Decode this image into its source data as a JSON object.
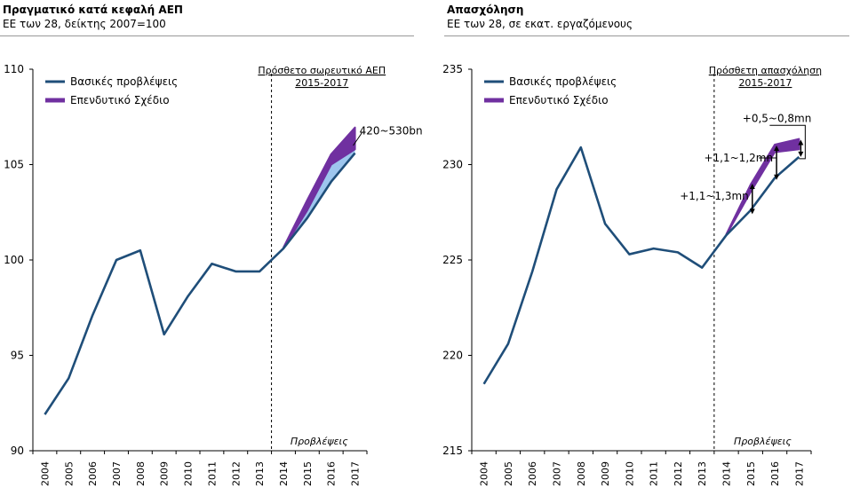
{
  "chart_data": [
    {
      "type": "line",
      "title": "Πραγματικό κατά κεφαλή ΑΕΠ",
      "subtitle": "ΕΕ των 28, δείκτης 2007=100",
      "categories": [
        "2004",
        "2005",
        "2006",
        "2007",
        "2008",
        "2009",
        "2010",
        "2011",
        "2012",
        "2013",
        "2014",
        "2015",
        "2016",
        "2017"
      ],
      "ylim": [
        90,
        110
      ],
      "yticks": [
        "90",
        "95",
        "100",
        "105",
        "110"
      ],
      "series": [
        {
          "name": "Βασικές προβλέψεις",
          "color": "#1f4e79",
          "values": [
            91.9,
            93.8,
            97.1,
            100.0,
            100.5,
            96.1,
            98.1,
            99.8,
            99.4,
            99.4,
            100.6,
            102.2,
            104.1,
            105.6
          ]
        },
        {
          "name": "Επενδυτικό Σχέδιο",
          "color": "#7030a0",
          "values": [
            null,
            null,
            null,
            null,
            null,
            null,
            null,
            null,
            null,
            null,
            100.6,
            103.1,
            105.5,
            106.9
          ]
        }
      ],
      "forecast_label": "Προβλέψεις",
      "box_label": [
        "Πρόσθετο σωρευτικό ΑΕΠ",
        "2015-2017"
      ],
      "annotations": [
        {
          "text": "420~530bn"
        }
      ]
    },
    {
      "type": "line",
      "title": "Απασχόληση",
      "subtitle": "ΕΕ των 28, σε εκατ. εργαζόμενους",
      "categories": [
        "2004",
        "2005",
        "2006",
        "2007",
        "2008",
        "2009",
        "2010",
        "2011",
        "2012",
        "2013",
        "2014",
        "2015",
        "2016",
        "2017"
      ],
      "ylim": [
        215,
        235
      ],
      "yticks": [
        "215",
        "220",
        "225",
        "230",
        "235"
      ],
      "series": [
        {
          "name": "Βασικές προβλέψεις",
          "color": "#1f4e79",
          "values": [
            218.5,
            220.6,
            224.4,
            228.7,
            230.9,
            226.9,
            225.3,
            225.6,
            225.4,
            224.6,
            226.3,
            227.6,
            229.3,
            230.4
          ]
        },
        {
          "name": "Επενδυτικό Σχέδιο",
          "color": "#7030a0",
          "values": [
            null,
            null,
            null,
            null,
            null,
            null,
            null,
            null,
            null,
            null,
            226.3,
            228.9,
            231.0,
            231.3
          ]
        }
      ],
      "forecast_label": "Προβλέψεις",
      "box_label": [
        "Πρόσθετη απασχόληση",
        "2015-2017"
      ],
      "annotations": [
        {
          "text": "+1,1~1,3mn"
        },
        {
          "text": "+1,1~1,2mn"
        },
        {
          "text": "+0,5~0,8mn"
        }
      ]
    }
  ]
}
